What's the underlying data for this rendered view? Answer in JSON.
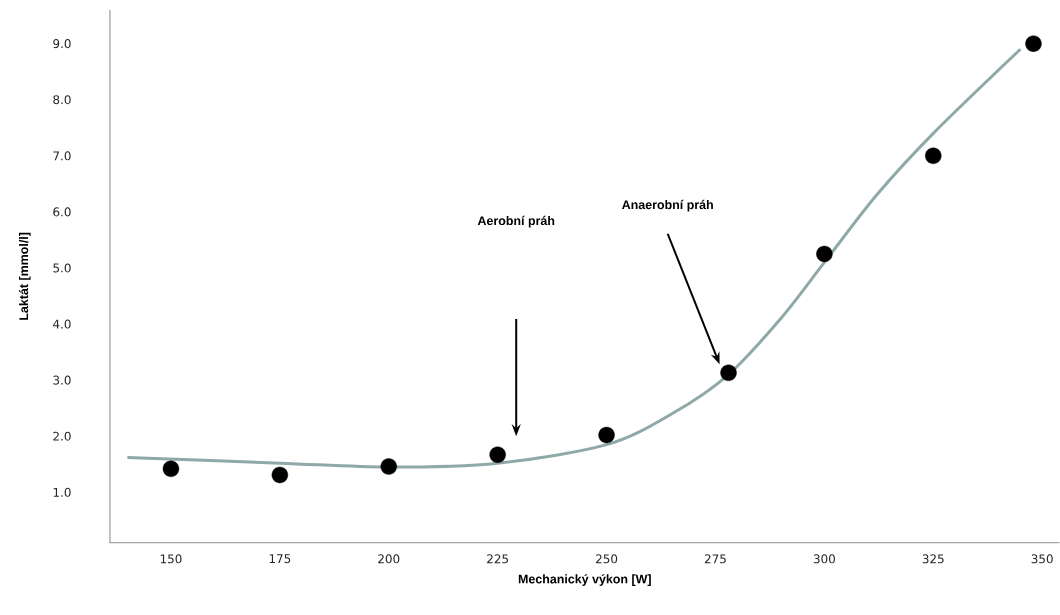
{
  "chart_data": {
    "type": "scatter",
    "xlabel": "Mechanický výkon [W]",
    "ylabel": "Laktát [mmol/l]",
    "xlim": [
      136,
      354
    ],
    "ylim": [
      0.1,
      9.6
    ],
    "xticks": [
      150,
      175,
      200,
      225,
      250,
      275,
      300,
      325,
      350
    ],
    "yticks": [
      {
        "value": 1,
        "label": "1.0"
      },
      {
        "value": 2,
        "label": "2.0"
      },
      {
        "value": 3,
        "label": "3.0"
      },
      {
        "value": 4,
        "label": "4.0"
      },
      {
        "value": 5,
        "label": "5.0"
      },
      {
        "value": 6,
        "label": "6.0"
      },
      {
        "value": 7,
        "label": "7.0"
      },
      {
        "value": 8,
        "label": "8.0"
      },
      {
        "value": 9,
        "label": "9.0"
      }
    ],
    "grid": false,
    "series": [
      {
        "type": "scatter",
        "marker": "circle",
        "color": "#000000",
        "x": [
          150,
          175,
          200,
          225,
          250,
          278,
          300,
          325,
          348
        ],
        "values": [
          1.42,
          1.31,
          1.46,
          1.67,
          2.02,
          3.13,
          5.25,
          7.0,
          9.0
        ]
      },
      {
        "type": "line",
        "color": "#8fa8a8",
        "x": [
          140,
          175,
          200,
          225,
          250,
          265,
          278,
          290,
          300,
          312,
          325,
          345
        ],
        "values": [
          1.62,
          1.52,
          1.45,
          1.52,
          1.85,
          2.4,
          3.1,
          4.1,
          5.1,
          6.3,
          7.4,
          8.9
        ]
      }
    ],
    "annotations": [
      "Aerobní práh",
      "Anaerobní práh"
    ]
  }
}
